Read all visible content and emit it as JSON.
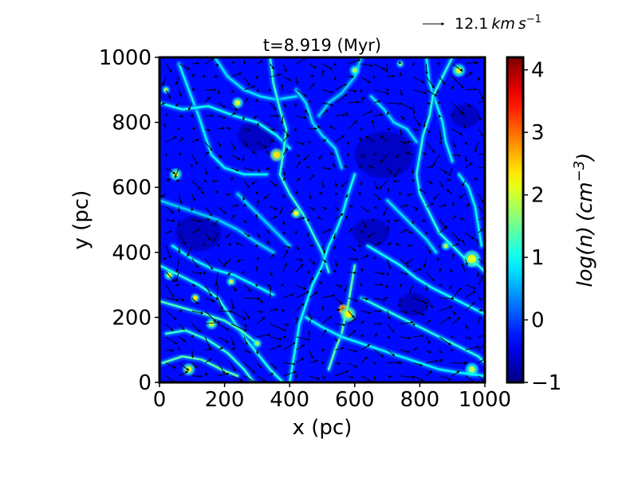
{
  "chart_data": {
    "type": "heatmap",
    "title": "t=8.919 (Myr)",
    "xlabel": "x (pc)",
    "ylabel": "y (pc)",
    "xlim": [
      0,
      1000
    ],
    "ylim": [
      0,
      1000
    ],
    "xticks": [
      0,
      200,
      400,
      600,
      800,
      1000
    ],
    "yticks": [
      0,
      200,
      400,
      600,
      800,
      1000
    ],
    "colorbar": {
      "label": "log(n) (cm^{-3})",
      "min": -1,
      "max": 4.2,
      "ticks": [
        -1,
        0,
        1,
        2,
        3,
        4
      ],
      "colormap": "jet"
    },
    "quiver_key": {
      "label": "12.1 km s^{-1}",
      "value": 12.1,
      "unit": "km/s"
    },
    "grid": false,
    "frame_color": "#000000",
    "background_level": -0.3,
    "filaments": [
      {
        "points": [
          [
            0,
            360
          ],
          [
            60,
            330
          ],
          [
            120,
            300
          ],
          [
            180,
            260
          ],
          [
            220,
            200
          ],
          [
            260,
            140
          ],
          [
            300,
            90
          ],
          [
            340,
            40
          ],
          [
            380,
            0
          ]
        ],
        "level": 1.1
      },
      {
        "points": [
          [
            0,
            250
          ],
          [
            70,
            230
          ],
          [
            140,
            210
          ],
          [
            200,
            190
          ],
          [
            250,
            160
          ],
          [
            300,
            120
          ]
        ],
        "level": 1.3
      },
      {
        "points": [
          [
            20,
            150
          ],
          [
            80,
            160
          ],
          [
            150,
            130
          ],
          [
            210,
            90
          ],
          [
            260,
            40
          ],
          [
            290,
            0
          ]
        ],
        "level": 1.2
      },
      {
        "points": [
          [
            40,
            420
          ],
          [
            100,
            380
          ],
          [
            160,
            350
          ],
          [
            230,
            330
          ],
          [
            290,
            300
          ],
          [
            350,
            270
          ]
        ],
        "level": 0.9
      },
      {
        "points": [
          [
            10,
            60
          ],
          [
            70,
            80
          ],
          [
            130,
            70
          ],
          [
            190,
            40
          ],
          [
            240,
            20
          ]
        ],
        "level": 1.4
      },
      {
        "points": [
          [
            60,
            980
          ],
          [
            90,
            900
          ],
          [
            120,
            820
          ],
          [
            140,
            760
          ],
          [
            160,
            700
          ],
          [
            200,
            660
          ],
          [
            260,
            640
          ],
          [
            330,
            640
          ]
        ],
        "level": 0.9
      },
      {
        "points": [
          [
            0,
            860
          ],
          [
            70,
            840
          ],
          [
            150,
            850
          ],
          [
            230,
            820
          ],
          [
            300,
            800
          ],
          [
            360,
            760
          ],
          [
            400,
            720
          ]
        ],
        "level": 1.0
      },
      {
        "points": [
          [
            170,
            1000
          ],
          [
            210,
            940
          ],
          [
            260,
            900
          ],
          [
            310,
            880
          ],
          [
            360,
            870
          ],
          [
            420,
            880
          ]
        ],
        "level": 0.8
      },
      {
        "points": [
          [
            340,
            1000
          ],
          [
            350,
            920
          ],
          [
            370,
            840
          ],
          [
            390,
            780
          ],
          [
            380,
            700
          ],
          [
            370,
            640
          ],
          [
            400,
            580
          ],
          [
            440,
            520
          ],
          [
            470,
            460
          ],
          [
            500,
            400
          ],
          [
            520,
            340
          ]
        ],
        "level": 1.2
      },
      {
        "points": [
          [
            420,
            900
          ],
          [
            450,
            860
          ],
          [
            470,
            800
          ],
          [
            500,
            760
          ],
          [
            540,
            720
          ],
          [
            560,
            660
          ]
        ],
        "level": 0.8
      },
      {
        "points": [
          [
            620,
            1000
          ],
          [
            600,
            940
          ],
          [
            560,
            890
          ],
          [
            520,
            860
          ],
          [
            490,
            820
          ]
        ],
        "level": 0.7
      },
      {
        "points": [
          [
            600,
            640
          ],
          [
            580,
            580
          ],
          [
            560,
            510
          ],
          [
            540,
            460
          ],
          [
            520,
            420
          ],
          [
            500,
            360
          ],
          [
            470,
            300
          ],
          [
            450,
            240
          ],
          [
            430,
            180
          ],
          [
            420,
            120
          ],
          [
            410,
            60
          ],
          [
            400,
            0
          ]
        ],
        "level": 1.0
      },
      {
        "points": [
          [
            600,
            360
          ],
          [
            590,
            300
          ],
          [
            580,
            240
          ],
          [
            570,
            200
          ],
          [
            560,
            150
          ],
          [
            540,
            100
          ],
          [
            520,
            40
          ]
        ],
        "level": 1.4
      },
      {
        "points": [
          [
            820,
            1000
          ],
          [
            830,
            920
          ],
          [
            850,
            860
          ],
          [
            870,
            800
          ],
          [
            880,
            740
          ],
          [
            900,
            680
          ]
        ],
        "level": 0.9
      },
      {
        "points": [
          [
            900,
            1000
          ],
          [
            880,
            960
          ],
          [
            860,
            920
          ],
          [
            840,
            880
          ],
          [
            830,
            820
          ],
          [
            810,
            760
          ],
          [
            800,
            700
          ],
          [
            790,
            640
          ],
          [
            800,
            580
          ],
          [
            830,
            520
          ],
          [
            860,
            460
          ],
          [
            900,
            420
          ],
          [
            940,
            380
          ],
          [
            980,
            360
          ],
          [
            1000,
            340
          ]
        ],
        "level": 1.1
      },
      {
        "points": [
          [
            650,
            880
          ],
          [
            690,
            840
          ],
          [
            720,
            800
          ],
          [
            760,
            780
          ],
          [
            790,
            740
          ]
        ],
        "level": 0.8
      },
      {
        "points": [
          [
            640,
            420
          ],
          [
            690,
            390
          ],
          [
            740,
            360
          ],
          [
            790,
            320
          ],
          [
            840,
            290
          ],
          [
            900,
            260
          ],
          [
            960,
            230
          ],
          [
            1000,
            210
          ]
        ],
        "level": 1.0
      },
      {
        "points": [
          [
            620,
            260
          ],
          [
            680,
            230
          ],
          [
            740,
            200
          ],
          [
            800,
            170
          ],
          [
            860,
            140
          ],
          [
            920,
            110
          ],
          [
            980,
            80
          ],
          [
            1000,
            60
          ]
        ],
        "level": 1.1
      },
      {
        "points": [
          [
            700,
            560
          ],
          [
            740,
            520
          ],
          [
            780,
            480
          ],
          [
            820,
            440
          ],
          [
            850,
            400
          ]
        ],
        "level": 0.8
      },
      {
        "points": [
          [
            450,
            200
          ],
          [
            500,
            170
          ],
          [
            560,
            140
          ],
          [
            620,
            120
          ],
          [
            680,
            100
          ],
          [
            740,
            80
          ],
          [
            800,
            60
          ],
          [
            860,
            40
          ],
          [
            920,
            30
          ],
          [
            1000,
            20
          ]
        ],
        "level": 0.9
      },
      {
        "points": [
          [
            0,
            560
          ],
          [
            60,
            540
          ],
          [
            120,
            520
          ],
          [
            180,
            500
          ],
          [
            240,
            470
          ],
          [
            300,
            430
          ],
          [
            350,
            400
          ]
        ],
        "level": 0.7
      },
      {
        "points": [
          [
            240,
            580
          ],
          [
            280,
            540
          ],
          [
            320,
            500
          ],
          [
            360,
            460
          ],
          [
            400,
            420
          ]
        ],
        "level": 0.7
      },
      {
        "points": [
          [
            920,
            640
          ],
          [
            950,
            600
          ],
          [
            970,
            540
          ],
          [
            980,
            480
          ],
          [
            990,
            420
          ]
        ],
        "level": 0.9
      }
    ],
    "clumps": [
      {
        "x": 360,
        "y": 700,
        "r": 12,
        "level": 2.4
      },
      {
        "x": 565,
        "y": 225,
        "r": 9,
        "level": 3.3
      },
      {
        "x": 580,
        "y": 210,
        "r": 14,
        "level": 2.2
      },
      {
        "x": 960,
        "y": 380,
        "r": 16,
        "level": 2.1
      },
      {
        "x": 240,
        "y": 860,
        "r": 10,
        "level": 2.1
      },
      {
        "x": 920,
        "y": 960,
        "r": 12,
        "level": 2.0
      },
      {
        "x": 50,
        "y": 640,
        "r": 11,
        "level": 2.0
      },
      {
        "x": 420,
        "y": 520,
        "r": 9,
        "level": 2.2
      },
      {
        "x": 880,
        "y": 420,
        "r": 8,
        "level": 1.9
      },
      {
        "x": 90,
        "y": 40,
        "r": 11,
        "level": 2.1
      },
      {
        "x": 160,
        "y": 180,
        "r": 10,
        "level": 2.0
      },
      {
        "x": 110,
        "y": 260,
        "r": 8,
        "level": 2.3
      },
      {
        "x": 30,
        "y": 330,
        "r": 9,
        "level": 2.0
      },
      {
        "x": 220,
        "y": 310,
        "r": 8,
        "level": 1.9
      },
      {
        "x": 600,
        "y": 960,
        "r": 9,
        "level": 1.8
      },
      {
        "x": 960,
        "y": 40,
        "r": 12,
        "level": 1.9
      },
      {
        "x": 740,
        "y": 980,
        "r": 7,
        "level": 1.7
      },
      {
        "x": 300,
        "y": 120,
        "r": 8,
        "level": 1.8
      },
      {
        "x": 20,
        "y": 900,
        "r": 7,
        "level": 1.9
      }
    ],
    "voids": [
      {
        "x": 120,
        "y": 460,
        "r": 70
      },
      {
        "x": 300,
        "y": 760,
        "r": 60
      },
      {
        "x": 690,
        "y": 700,
        "r": 90
      },
      {
        "x": 650,
        "y": 460,
        "r": 55
      },
      {
        "x": 940,
        "y": 820,
        "r": 45
      },
      {
        "x": 780,
        "y": 240,
        "r": 45
      }
    ],
    "velocity_field": {
      "xmin": 20,
      "xmax": 980,
      "ymin": 20,
      "ymax": 980,
      "step": 40,
      "mean_angle_deg": -20,
      "mean_speed": 12.1,
      "vortices": [
        {
          "x": 250,
          "y": 300,
          "strength": 8
        },
        {
          "x": 700,
          "y": 800,
          "strength": -6
        },
        {
          "x": 850,
          "y": 300,
          "strength": 5
        }
      ]
    }
  }
}
